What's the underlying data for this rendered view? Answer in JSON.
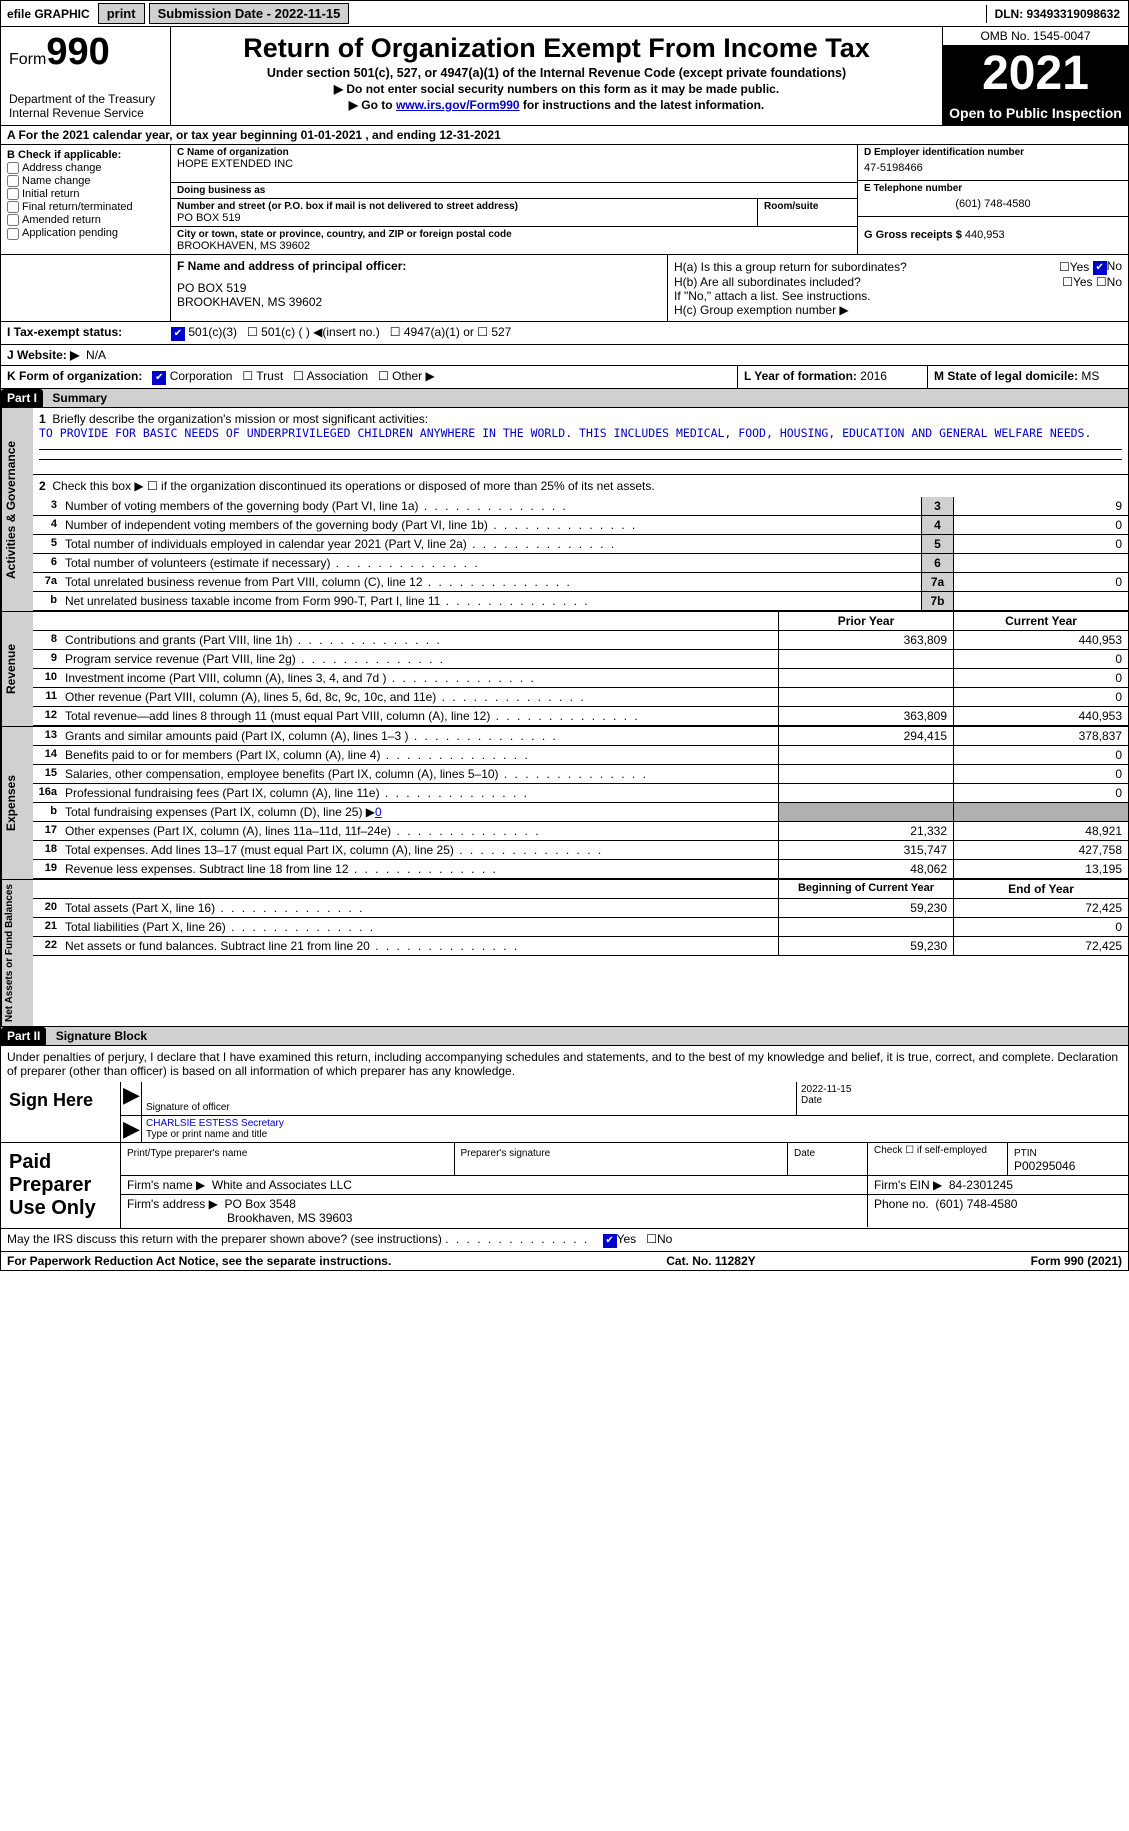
{
  "topbar": {
    "efile": "efile GRAPHIC",
    "print": "print",
    "submission_label": "Submission Date - 2022-11-15",
    "dln_label": "DLN: 93493319098632"
  },
  "header": {
    "form_prefix": "Form",
    "form_number": "990",
    "title": "Return of Organization Exempt From Income Tax",
    "subtitle": "Under section 501(c), 527, or 4947(a)(1) of the Internal Revenue Code (except private foundations)",
    "note1": "▶ Do not enter social security numbers on this form as it may be made public.",
    "note2_prefix": "▶ Go to ",
    "note2_link": "www.irs.gov/Form990",
    "note2_suffix": " for instructions and the latest information.",
    "dept": "Department of the Treasury",
    "irs": "Internal Revenue Service",
    "omb": "OMB No. 1545-0047",
    "year": "2021",
    "open": "Open to Public Inspection"
  },
  "row_a": "A For the 2021 calendar year, or tax year beginning 01-01-2021   , and ending 12-31-2021",
  "section_b": {
    "heading": "B Check if applicable:",
    "items": [
      "Address change",
      "Name change",
      "Initial return",
      "Final return/terminated",
      "Amended return",
      "Application pending"
    ]
  },
  "section_c": {
    "label_name": "C Name of organization",
    "org_name": "HOPE EXTENDED INC",
    "dba_label": "Doing business as",
    "dba": "",
    "street_label": "Number and street (or P.O. box if mail is not delivered to street address)",
    "room_label": "Room/suite",
    "street": "PO BOX 519",
    "city_label": "City or town, state or province, country, and ZIP or foreign postal code",
    "city": "BROOKHAVEN, MS  39602"
  },
  "section_d": {
    "label": "D Employer identification number",
    "ein": "47-5198466"
  },
  "section_e": {
    "label": "E Telephone number",
    "phone": "(601) 748-4580"
  },
  "section_g": {
    "label": "G Gross receipts $",
    "amount": "440,953"
  },
  "section_f": {
    "label": "F  Name and address of principal officer:",
    "addr1": "PO BOX 519",
    "addr2": "BROOKHAVEN, MS  39602"
  },
  "section_h": {
    "ha": "H(a)  Is this a group return for subordinates?",
    "hb": "H(b)  Are all subordinates included?",
    "hc": "H(c)  Group exemption number ▶",
    "note": "If \"No,\" attach a list. See instructions.",
    "yes": "Yes",
    "no": "No"
  },
  "row_i": {
    "label": "I   Tax-exempt status:",
    "opt1": "501(c)(3)",
    "opt2": "501(c) (  ) ◀(insert no.)",
    "opt3": "4947(a)(1) or",
    "opt4": "527"
  },
  "row_j": {
    "label": "J   Website: ▶",
    "val": "N/A"
  },
  "row_k": {
    "label": "K Form of organization:",
    "opts": [
      "Corporation",
      "Trust",
      "Association",
      "Other ▶"
    ]
  },
  "row_l": {
    "label": "L Year of formation:",
    "val": "2016"
  },
  "row_m": {
    "label": "M State of legal domicile:",
    "val": "MS"
  },
  "part1": {
    "header": "Part I",
    "title": "Summary",
    "line1": "Briefly describe the organization's mission or most significant activities:",
    "mission": "TO PROVIDE FOR BASIC NEEDS OF UNDERPRIVILEGED CHILDREN ANYWHERE IN THE WORLD. THIS INCLUDES MEDICAL, FOOD, HOUSING, EDUCATION AND GENERAL WELFARE NEEDS.",
    "line2": "Check this box ▶ ☐ if the organization discontinued its operations or disposed of more than 25% of its net assets.",
    "side_ag": "Activities & Governance",
    "side_rev": "Revenue",
    "side_exp": "Expenses",
    "side_na": "Net Assets or Fund Balances",
    "rows_ag": [
      {
        "n": "3",
        "d": "Number of voting members of the governing body (Part VI, line 1a)",
        "box": "3",
        "v": "9"
      },
      {
        "n": "4",
        "d": "Number of independent voting members of the governing body (Part VI, line 1b)",
        "box": "4",
        "v": "0"
      },
      {
        "n": "5",
        "d": "Total number of individuals employed in calendar year 2021 (Part V, line 2a)",
        "box": "5",
        "v": "0"
      },
      {
        "n": "6",
        "d": "Total number of volunteers (estimate if necessary)",
        "box": "6",
        "v": ""
      },
      {
        "n": "7a",
        "d": "Total unrelated business revenue from Part VIII, column (C), line 12",
        "box": "7a",
        "v": "0"
      },
      {
        "n": "b",
        "d": "Net unrelated business taxable income from Form 990-T, Part I, line 11",
        "box": "7b",
        "v": ""
      }
    ],
    "col_prior": "Prior Year",
    "col_current": "Current Year",
    "rows_rev": [
      {
        "n": "8",
        "d": "Contributions and grants (Part VIII, line 1h)",
        "p": "363,809",
        "c": "440,953"
      },
      {
        "n": "9",
        "d": "Program service revenue (Part VIII, line 2g)",
        "p": "",
        "c": "0"
      },
      {
        "n": "10",
        "d": "Investment income (Part VIII, column (A), lines 3, 4, and 7d )",
        "p": "",
        "c": "0"
      },
      {
        "n": "11",
        "d": "Other revenue (Part VIII, column (A), lines 5, 6d, 8c, 9c, 10c, and 11e)",
        "p": "",
        "c": "0"
      },
      {
        "n": "12",
        "d": "Total revenue—add lines 8 through 11 (must equal Part VIII, column (A), line 12)",
        "p": "363,809",
        "c": "440,953"
      }
    ],
    "rows_exp": [
      {
        "n": "13",
        "d": "Grants and similar amounts paid (Part IX, column (A), lines 1–3 )",
        "p": "294,415",
        "c": "378,837"
      },
      {
        "n": "14",
        "d": "Benefits paid to or for members (Part IX, column (A), line 4)",
        "p": "",
        "c": "0"
      },
      {
        "n": "15",
        "d": "Salaries, other compensation, employee benefits (Part IX, column (A), lines 5–10)",
        "p": "",
        "c": "0"
      },
      {
        "n": "16a",
        "d": "Professional fundraising fees (Part IX, column (A), line 11e)",
        "p": "",
        "c": "0"
      }
    ],
    "row_16b_label": "b",
    "row_16b_desc": "Total fundraising expenses (Part IX, column (D), line 25) ▶",
    "row_16b_val": "0",
    "rows_exp2": [
      {
        "n": "17",
        "d": "Other expenses (Part IX, column (A), lines 11a–11d, 11f–24e)",
        "p": "21,332",
        "c": "48,921"
      },
      {
        "n": "18",
        "d": "Total expenses. Add lines 13–17 (must equal Part IX, column (A), line 25)",
        "p": "315,747",
        "c": "427,758"
      },
      {
        "n": "19",
        "d": "Revenue less expenses. Subtract line 18 from line 12",
        "p": "48,062",
        "c": "13,195"
      }
    ],
    "col_beg": "Beginning of Current Year",
    "col_end": "End of Year",
    "rows_na": [
      {
        "n": "20",
        "d": "Total assets (Part X, line 16)",
        "p": "59,230",
        "c": "72,425"
      },
      {
        "n": "21",
        "d": "Total liabilities (Part X, line 26)",
        "p": "",
        "c": "0"
      },
      {
        "n": "22",
        "d": "Net assets or fund balances. Subtract line 21 from line 20",
        "p": "59,230",
        "c": "72,425"
      }
    ]
  },
  "part2": {
    "header": "Part II",
    "title": "Signature Block",
    "declaration": "Under penalties of perjury, I declare that I have examined this return, including accompanying schedules and statements, and to the best of my knowledge and belief, it is true, correct, and complete. Declaration of preparer (other than officer) is based on all information of which preparer has any knowledge.",
    "sign_here": "Sign Here",
    "sig_officer": "Signature of officer",
    "sig_date": "2022-11-15",
    "date_label": "Date",
    "officer_name": "CHARLSIE ESTESS Secretary",
    "type_name": "Type or print name and title",
    "paid": "Paid Preparer Use Only",
    "prep_name_label": "Print/Type preparer's name",
    "prep_sig_label": "Preparer's signature",
    "prep_date_label": "Date",
    "check_if": "Check ☐ if self-employed",
    "ptin_label": "PTIN",
    "ptin": "P00295046",
    "firm_name_label": "Firm's name    ▶",
    "firm_name": "White and Associates LLC",
    "firm_ein_label": "Firm's EIN ▶",
    "firm_ein": "84-2301245",
    "firm_addr_label": "Firm's address ▶",
    "firm_addr": "PO Box 3548",
    "firm_city": "Brookhaven, MS  39603",
    "phone_label": "Phone no.",
    "phone": "(601) 748-4580"
  },
  "may_discuss": "May the IRS discuss this return with the preparer shown above? (see instructions)",
  "footer": {
    "left": "For Paperwork Reduction Act Notice, see the separate instructions.",
    "mid": "Cat. No. 11282Y",
    "right": "Form 990 (2021)"
  }
}
